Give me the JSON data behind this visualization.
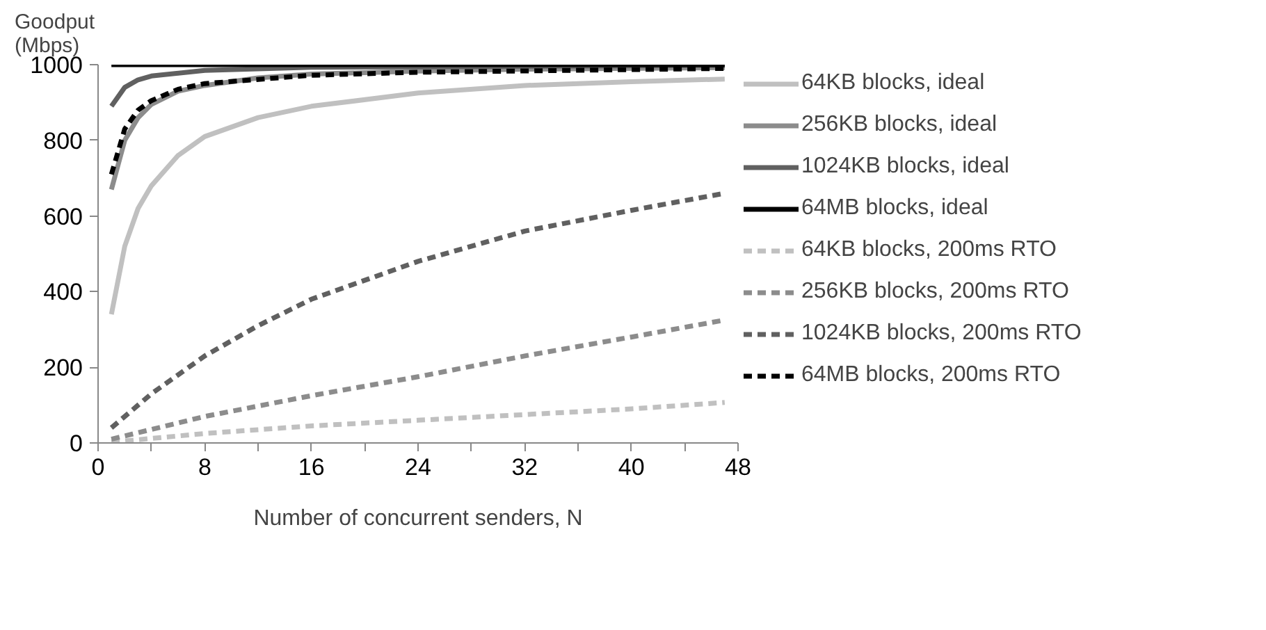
{
  "chart_data": {
    "type": "line",
    "ylabel": "Goodput (Mbps)",
    "xlabel": "Number of concurrent senders, N",
    "xlim": [
      0,
      48
    ],
    "ylim": [
      0,
      1000
    ],
    "xticks": [
      0,
      {
        "value": 4,
        "label": null
      },
      8,
      {
        "value": 12,
        "label": null
      },
      16,
      {
        "value": 20,
        "label": null
      },
      24,
      {
        "value": 28,
        "label": null
      },
      32,
      {
        "value": 36,
        "label": null
      },
      40,
      {
        "value": 44,
        "label": null
      },
      48
    ],
    "yticks": [
      0,
      200,
      400,
      600,
      800,
      1000
    ],
    "grid": false,
    "legend": "right",
    "series": [
      {
        "name": "64KB blocks, ideal",
        "color": "#c0c0c0",
        "line_style": "solid",
        "x": [
          1,
          2,
          3,
          4,
          6,
          8,
          12,
          16,
          24,
          32,
          40,
          47
        ],
        "values": [
          340,
          520,
          620,
          680,
          760,
          810,
          860,
          890,
          925,
          945,
          955,
          962
        ]
      },
      {
        "name": "256KB blocks, ideal",
        "color": "#8c8c8c",
        "line_style": "solid",
        "x": [
          1,
          2,
          3,
          4,
          6,
          8,
          12,
          16,
          24,
          32,
          47
        ],
        "values": [
          670,
          800,
          860,
          895,
          930,
          945,
          965,
          975,
          983,
          988,
          992
        ]
      },
      {
        "name": "1024KB blocks, ideal",
        "color": "#606060",
        "line_style": "solid",
        "x": [
          1,
          2,
          3,
          4,
          8,
          16,
          47
        ],
        "values": [
          890,
          940,
          960,
          970,
          985,
          993,
          998
        ]
      },
      {
        "name": "64MB blocks, ideal",
        "color": "#000000",
        "line_style": "solid",
        "x": [
          1,
          47
        ],
        "values": [
          1000,
          1000
        ]
      },
      {
        "name": "64KB blocks, 200ms RTO",
        "color": "#c0c0c0",
        "line_style": "dashed",
        "x": [
          1,
          8,
          16,
          24,
          32,
          40,
          47
        ],
        "values": [
          2,
          25,
          45,
          60,
          75,
          90,
          107
        ]
      },
      {
        "name": "256KB blocks, 200ms RTO",
        "color": "#8c8c8c",
        "line_style": "dashed",
        "x": [
          1,
          8,
          16,
          24,
          32,
          40,
          47
        ],
        "values": [
          10,
          70,
          125,
          175,
          230,
          280,
          325
        ]
      },
      {
        "name": "1024KB blocks, 200ms RTO",
        "color": "#606060",
        "line_style": "dashed",
        "x": [
          1,
          4,
          8,
          12,
          16,
          24,
          32,
          40,
          47
        ],
        "values": [
          40,
          130,
          230,
          310,
          380,
          480,
          560,
          615,
          660
        ]
      },
      {
        "name": "64MB blocks, 200ms RTO",
        "color": "#000000",
        "line_style": "dashed",
        "x": [
          1,
          2,
          3,
          4,
          6,
          8,
          16,
          24,
          47
        ],
        "values": [
          710,
          830,
          880,
          905,
          935,
          950,
          972,
          980,
          990
        ]
      }
    ]
  }
}
